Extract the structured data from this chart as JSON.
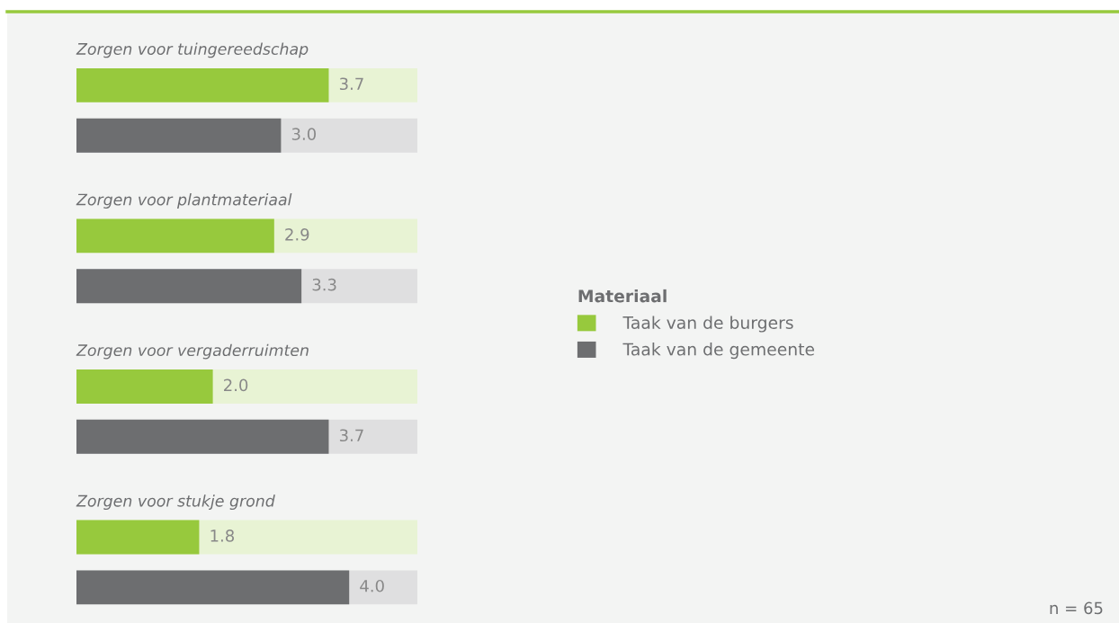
{
  "chart_data": {
    "type": "bar",
    "orientation": "horizontal",
    "categories": [
      "Zorgen voor tuingereedschap",
      "Zorgen voor plantmateriaal",
      "Zorgen voor vergaderruimten",
      "Zorgen voor stukje grond"
    ],
    "series": [
      {
        "name": "Taak van de burgers",
        "color": "#97c93d",
        "values": [
          3.7,
          2.9,
          2.0,
          1.8
        ],
        "value_labels": [
          "3.7",
          "2.9",
          "2.0",
          "1.8"
        ]
      },
      {
        "name": "Taak van de gemeente",
        "color": "#6d6e70",
        "values": [
          3.0,
          3.3,
          3.7,
          4.0
        ],
        "value_labels": [
          "3.0",
          "3.3",
          "3.7",
          "4.0"
        ]
      }
    ],
    "xlim": [
      0,
      5
    ],
    "legend": "right",
    "legend_title": "Materiaal",
    "annotations": [
      "n = 65"
    ]
  }
}
